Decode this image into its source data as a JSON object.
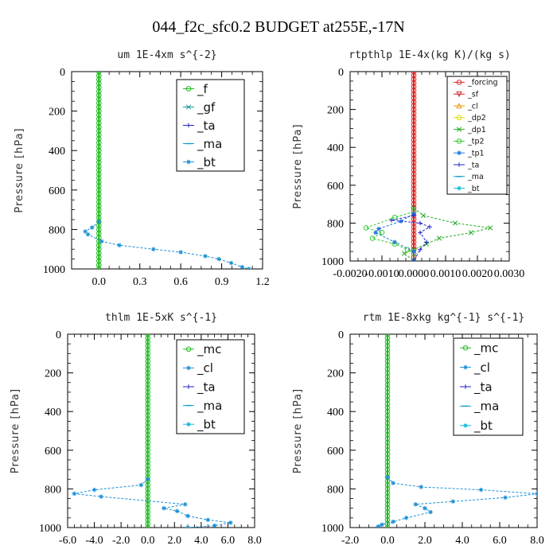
{
  "figure": {
    "title": "044_f2c_sfc0.2  BUDGET at255E,-17N"
  },
  "chart_data": [
    {
      "type": "line",
      "title": "um   1E-4xm s^{-2}",
      "xlabel": "",
      "ylabel": "Pressure [hPa]",
      "xlim": [
        -0.2,
        1.2
      ],
      "ylim": [
        1000,
        0
      ],
      "xticks": [
        0.0,
        0.3,
        0.6,
        0.9,
        1.2
      ],
      "xtick_labels": [
        "0.0",
        "0.3",
        "0.6",
        "0.9",
        "1.2"
      ],
      "yticks": [
        0,
        200,
        400,
        600,
        800,
        1000
      ],
      "ytick_labels": [
        "0",
        "200",
        "400",
        "600",
        "800",
        "1000"
      ],
      "legend_position": "top-right",
      "series": [
        {
          "name": "_f",
          "color": "#22bb22",
          "marker": "circle",
          "points": [
            [
              0,
              0
            ],
            [
              0,
              100
            ],
            [
              0,
              200
            ],
            [
              0,
              300
            ],
            [
              0,
              400
            ],
            [
              0,
              500
            ],
            [
              0,
              600
            ],
            [
              0,
              700
            ],
            [
              0,
              800
            ],
            [
              0,
              900
            ],
            [
              0,
              1000
            ]
          ]
        },
        {
          "name": "_gf",
          "color": "#119999",
          "marker": "x",
          "points": []
        },
        {
          "name": "_ta",
          "color": "#2222cc",
          "marker": "plus",
          "points": []
        },
        {
          "name": "_ma",
          "color": "#1199cc",
          "marker": "dash",
          "points": []
        },
        {
          "name": "_bt",
          "color": "#1a8fd6",
          "marker": "star",
          "points": [
            [
              0,
              760
            ],
            [
              -0.05,
              790
            ],
            [
              -0.1,
              810
            ],
            [
              -0.08,
              825
            ],
            [
              0.02,
              860
            ],
            [
              0.15,
              880
            ],
            [
              0.4,
              900
            ],
            [
              0.6,
              915
            ],
            [
              0.78,
              935
            ],
            [
              0.88,
              950
            ],
            [
              0.97,
              970
            ],
            [
              1.05,
              990
            ],
            [
              1.1,
              1000
            ]
          ]
        }
      ]
    },
    {
      "type": "line",
      "title": "rtpthlp   1E-4x(kg K)/(kg s)",
      "xlabel": "",
      "ylabel": "Pressure [hPa]",
      "xlim": [
        -0.002,
        0.003
      ],
      "ylim": [
        1000,
        0
      ],
      "xticks": [
        -0.002,
        -0.001,
        0.0,
        0.001,
        0.002,
        0.003
      ],
      "xtick_labels": [
        "-0.0020",
        "-0.0010",
        "0.0000",
        "0.0010",
        "0.0020",
        "0.0030"
      ],
      "yticks": [
        0,
        200,
        400,
        600,
        800,
        1000
      ],
      "ytick_labels": [
        "0",
        "200",
        "400",
        "600",
        "800",
        "1000"
      ],
      "legend_position": "top-right",
      "series": [
        {
          "name": "_forcing",
          "color": "#dd2222",
          "marker": "circle",
          "points": [
            [
              0,
              0
            ],
            [
              0,
              100
            ],
            [
              0,
              200
            ],
            [
              0,
              300
            ],
            [
              0,
              400
            ],
            [
              0,
              500
            ],
            [
              0,
              600
            ],
            [
              0,
              700
            ],
            [
              0,
              800
            ],
            [
              0,
              900
            ],
            [
              0,
              1000
            ]
          ]
        },
        {
          "name": "_sf",
          "color": "#cc2222",
          "marker": "triangle-down",
          "points": []
        },
        {
          "name": "_cl",
          "color": "#ee9900",
          "marker": "triangle-up",
          "points": []
        },
        {
          "name": "_dp2",
          "color": "#dddd00",
          "marker": "circle",
          "points": []
        },
        {
          "name": "_dp1",
          "color": "#22aa22",
          "marker": "x",
          "points": [
            [
              0,
              720
            ],
            [
              0.0003,
              760
            ],
            [
              0.0013,
              800
            ],
            [
              0.0024,
              825
            ],
            [
              0.0018,
              850
            ],
            [
              0.0008,
              880
            ],
            [
              0.0004,
              910
            ],
            [
              0.0,
              940
            ],
            [
              -0.0003,
              960
            ],
            [
              0.0,
              1000
            ]
          ]
        },
        {
          "name": "_tp2",
          "color": "#33cc33",
          "marker": "circle",
          "points": [
            [
              0,
              740
            ],
            [
              -0.0006,
              770
            ],
            [
              -0.0015,
              825
            ],
            [
              -0.001,
              850
            ],
            [
              -0.0013,
              880
            ],
            [
              -0.0006,
              910
            ],
            [
              -0.0002,
              940
            ],
            [
              0.0,
              960
            ],
            [
              0.0,
              1000
            ]
          ]
        },
        {
          "name": "_tp1",
          "color": "#2277dd",
          "marker": "star",
          "points": [
            [
              0,
              750
            ],
            [
              -0.0004,
              790
            ],
            [
              -0.0011,
              830
            ],
            [
              -0.0012,
              850
            ],
            [
              -0.0006,
              900
            ],
            [
              0.0,
              950
            ],
            [
              0.0,
              1000
            ]
          ]
        },
        {
          "name": "_ta",
          "color": "#2222cc",
          "marker": "plus",
          "points": [
            [
              0,
              760
            ],
            [
              -0.0007,
              785
            ],
            [
              0.0002,
              800
            ],
            [
              0.0005,
              820
            ],
            [
              0.0002,
              850
            ],
            [
              0.0004,
              900
            ],
            [
              0.0002,
              940
            ],
            [
              0.0,
              1000
            ]
          ]
        },
        {
          "name": "_ma",
          "color": "#1199cc",
          "marker": "dash",
          "points": []
        },
        {
          "name": "_bt",
          "color": "#11bbdd",
          "marker": "star",
          "points": []
        }
      ]
    },
    {
      "type": "line",
      "title": "thlm   1E-5xK s^{-1}",
      "xlabel": "",
      "ylabel": "Pressure [hPa]",
      "xlim": [
        -6.0,
        8.0
      ],
      "ylim": [
        1000,
        0
      ],
      "xticks": [
        -6,
        -4,
        -2,
        0,
        2,
        4,
        6,
        8
      ],
      "xtick_labels": [
        "-6.0",
        "-4.0",
        "-2.0",
        "0.0",
        "2.0",
        "4.0",
        "6.0",
        "8.0"
      ],
      "yticks": [
        0,
        200,
        400,
        600,
        800,
        1000
      ],
      "ytick_labels": [
        "0",
        "200",
        "400",
        "600",
        "800",
        "1000"
      ],
      "legend_position": "top-right",
      "series": [
        {
          "name": "_mc",
          "color": "#22bb22",
          "marker": "circle",
          "points": [
            [
              0,
              0
            ],
            [
              0,
              100
            ],
            [
              0,
              200
            ],
            [
              0,
              300
            ],
            [
              0,
              400
            ],
            [
              0,
              500
            ],
            [
              0,
              600
            ],
            [
              0,
              700
            ],
            [
              0,
              800
            ],
            [
              0,
              900
            ],
            [
              0,
              1000
            ]
          ]
        },
        {
          "name": "_cl",
          "color": "#1a8fd6",
          "marker": "star",
          "points": [
            [
              0,
              750
            ],
            [
              -0.5,
              780
            ],
            [
              -4.0,
              805
            ],
            [
              -5.5,
              825
            ],
            [
              -3.5,
              840
            ],
            [
              2.8,
              880
            ],
            [
              1.2,
              900
            ],
            [
              2.2,
              915
            ],
            [
              3.0,
              940
            ],
            [
              4.5,
              960
            ],
            [
              6.2,
              975
            ],
            [
              5.0,
              990
            ],
            [
              3.0,
              1000
            ]
          ]
        },
        {
          "name": "_ta",
          "color": "#2222cc",
          "marker": "plus",
          "points": []
        },
        {
          "name": "_ma",
          "color": "#1199cc",
          "marker": "dash",
          "points": []
        },
        {
          "name": "_bt",
          "color": "#11bbdd",
          "marker": "star",
          "points": []
        }
      ]
    },
    {
      "type": "line",
      "title": "rtm   1E-8xkg kg^{-1} s^{-1}",
      "xlabel": "",
      "ylabel": "Pressure [hPa]",
      "xlim": [
        -2.0,
        8.0
      ],
      "ylim": [
        1000,
        0
      ],
      "xticks": [
        -2,
        0,
        2,
        4,
        6,
        8
      ],
      "xtick_labels": [
        "-2.0",
        "0.0",
        "2.0",
        "4.0",
        "6.0",
        "8.0"
      ],
      "yticks": [
        0,
        200,
        400,
        600,
        800,
        1000
      ],
      "ytick_labels": [
        "0",
        "200",
        "400",
        "600",
        "800",
        "1000"
      ],
      "legend_position": "top-right",
      "series": [
        {
          "name": "_mc",
          "color": "#22bb22",
          "marker": "circle",
          "points": [
            [
              0,
              0
            ],
            [
              0,
              100
            ],
            [
              0,
              200
            ],
            [
              0,
              300
            ],
            [
              0,
              400
            ],
            [
              0,
              500
            ],
            [
              0,
              600
            ],
            [
              0,
              700
            ],
            [
              0,
              800
            ],
            [
              0,
              900
            ],
            [
              0,
              1000
            ]
          ]
        },
        {
          "name": "_cl",
          "color": "#1a8fd6",
          "marker": "star",
          "points": [
            [
              0,
              740
            ],
            [
              0.3,
              770
            ],
            [
              1.8,
              790
            ],
            [
              5.0,
              805
            ],
            [
              8.0,
              825
            ],
            [
              6.3,
              845
            ],
            [
              3.5,
              865
            ],
            [
              1.5,
              880
            ],
            [
              2.0,
              900
            ],
            [
              2.3,
              920
            ],
            [
              1.0,
              950
            ],
            [
              0.3,
              970
            ],
            [
              -0.3,
              985
            ],
            [
              -0.5,
              995
            ]
          ]
        },
        {
          "name": "_ta",
          "color": "#2222cc",
          "marker": "plus",
          "points": []
        },
        {
          "name": "_ma",
          "color": "#1199cc",
          "marker": "dash",
          "points": []
        },
        {
          "name": "_bt",
          "color": "#11bbdd",
          "marker": "star",
          "points": []
        }
      ]
    }
  ]
}
